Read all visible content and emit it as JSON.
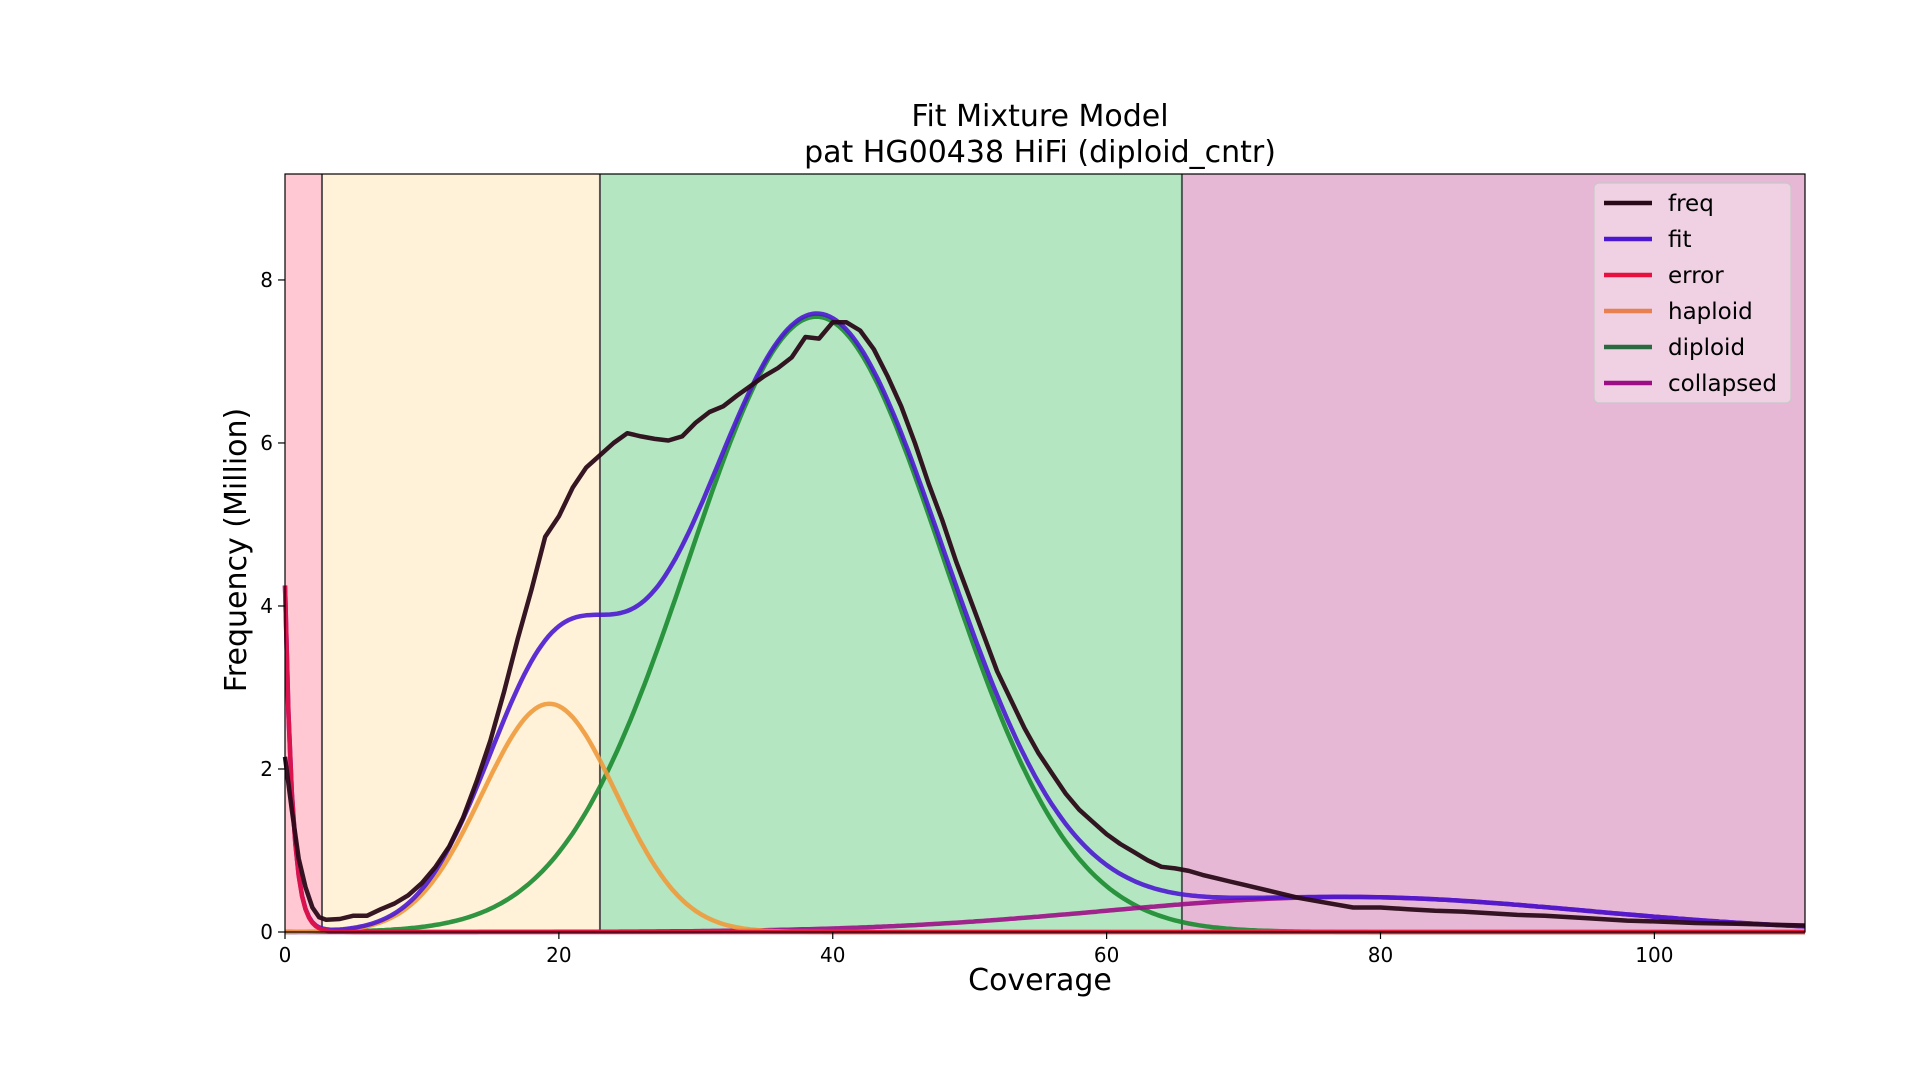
{
  "chart_data": {
    "type": "line",
    "title": "Fit Mixture Model",
    "subtitle": "pat HG00438 HiFi (diploid_cntr)",
    "xlabel": "Coverage",
    "ylabel": "Frequency (Million)",
    "xlim": [
      0,
      111
    ],
    "ylim": [
      0,
      9.3
    ],
    "xticks": [
      0,
      20,
      40,
      60,
      80,
      100
    ],
    "yticks": [
      0,
      2,
      4,
      6,
      8
    ],
    "grid": false,
    "legend_position": "top-right",
    "regions": [
      {
        "start": 0,
        "end": 2.7,
        "color": "#ffc8d2"
      },
      {
        "start": 2.7,
        "end": 23,
        "color": "#fff2d8"
      },
      {
        "start": 23,
        "end": 65.5,
        "color": "#b3e6c1"
      },
      {
        "start": 65.5,
        "end": 111,
        "color": "#e6b8d5"
      }
    ],
    "boundaries": [
      2.7,
      23,
      65.5
    ],
    "series": [
      {
        "name": "freq",
        "color": "#2a0a18",
        "x": [
          0,
          0.5,
          1,
          1.5,
          2,
          2.5,
          3,
          4,
          5,
          6,
          7,
          8,
          9,
          10,
          11,
          12,
          13,
          14,
          15,
          16,
          17,
          18,
          19,
          20,
          21,
          22,
          23,
          24,
          25,
          26,
          27,
          28,
          29,
          30,
          31,
          32,
          33,
          34,
          35,
          36,
          37,
          38,
          39,
          40,
          41,
          42,
          43,
          44,
          45,
          46,
          47,
          48,
          49,
          50,
          51,
          52,
          53,
          54,
          55,
          56,
          57,
          58,
          59,
          60,
          61,
          62,
          63,
          64,
          65,
          66,
          67,
          68,
          69,
          70,
          72,
          74,
          76,
          78,
          80,
          82,
          84,
          86,
          88,
          90,
          92,
          95,
          98,
          100,
          103,
          106,
          111
        ],
        "y": [
          2.15,
          1.5,
          0.9,
          0.55,
          0.3,
          0.18,
          0.15,
          0.16,
          0.2,
          0.2,
          0.28,
          0.35,
          0.45,
          0.6,
          0.8,
          1.05,
          1.4,
          1.85,
          2.35,
          2.95,
          3.6,
          4.2,
          4.85,
          5.1,
          5.45,
          5.7,
          5.85,
          6.0,
          6.12,
          6.08,
          6.05,
          6.03,
          6.08,
          6.25,
          6.38,
          6.45,
          6.58,
          6.7,
          6.82,
          6.92,
          7.05,
          7.3,
          7.28,
          7.48,
          7.48,
          7.38,
          7.15,
          6.82,
          6.45,
          6.0,
          5.5,
          5.05,
          4.55,
          4.1,
          3.65,
          3.2,
          2.85,
          2.5,
          2.2,
          1.95,
          1.7,
          1.5,
          1.35,
          1.2,
          1.08,
          0.98,
          0.88,
          0.8,
          0.78,
          0.75,
          0.7,
          0.66,
          0.62,
          0.58,
          0.5,
          0.42,
          0.36,
          0.3,
          0.3,
          0.28,
          0.26,
          0.25,
          0.23,
          0.21,
          0.2,
          0.17,
          0.14,
          0.13,
          0.11,
          0.1,
          0.08
        ]
      },
      {
        "name": "fit",
        "color": "#4b18d0",
        "x": [],
        "y": []
      },
      {
        "name": "error",
        "color": "#e8103e",
        "x": [],
        "y": []
      },
      {
        "name": "haploid",
        "color": "#f09a3c",
        "x": [],
        "y": []
      },
      {
        "name": "diploid",
        "color": "#1a8a30",
        "x": [],
        "y": []
      },
      {
        "name": "collapsed",
        "color": "#9c0e86",
        "x": [],
        "y": []
      }
    ],
    "legend": [
      {
        "name": "freq",
        "color": "#2a0a18"
      },
      {
        "name": "fit",
        "color": "#4b18d0"
      },
      {
        "name": "error",
        "color": "#e8103e"
      },
      {
        "name": "haploid",
        "color": "#e88050"
      },
      {
        "name": "diploid",
        "color": "#2a6a40"
      },
      {
        "name": "collapsed",
        "color": "#9c0e86"
      }
    ]
  }
}
